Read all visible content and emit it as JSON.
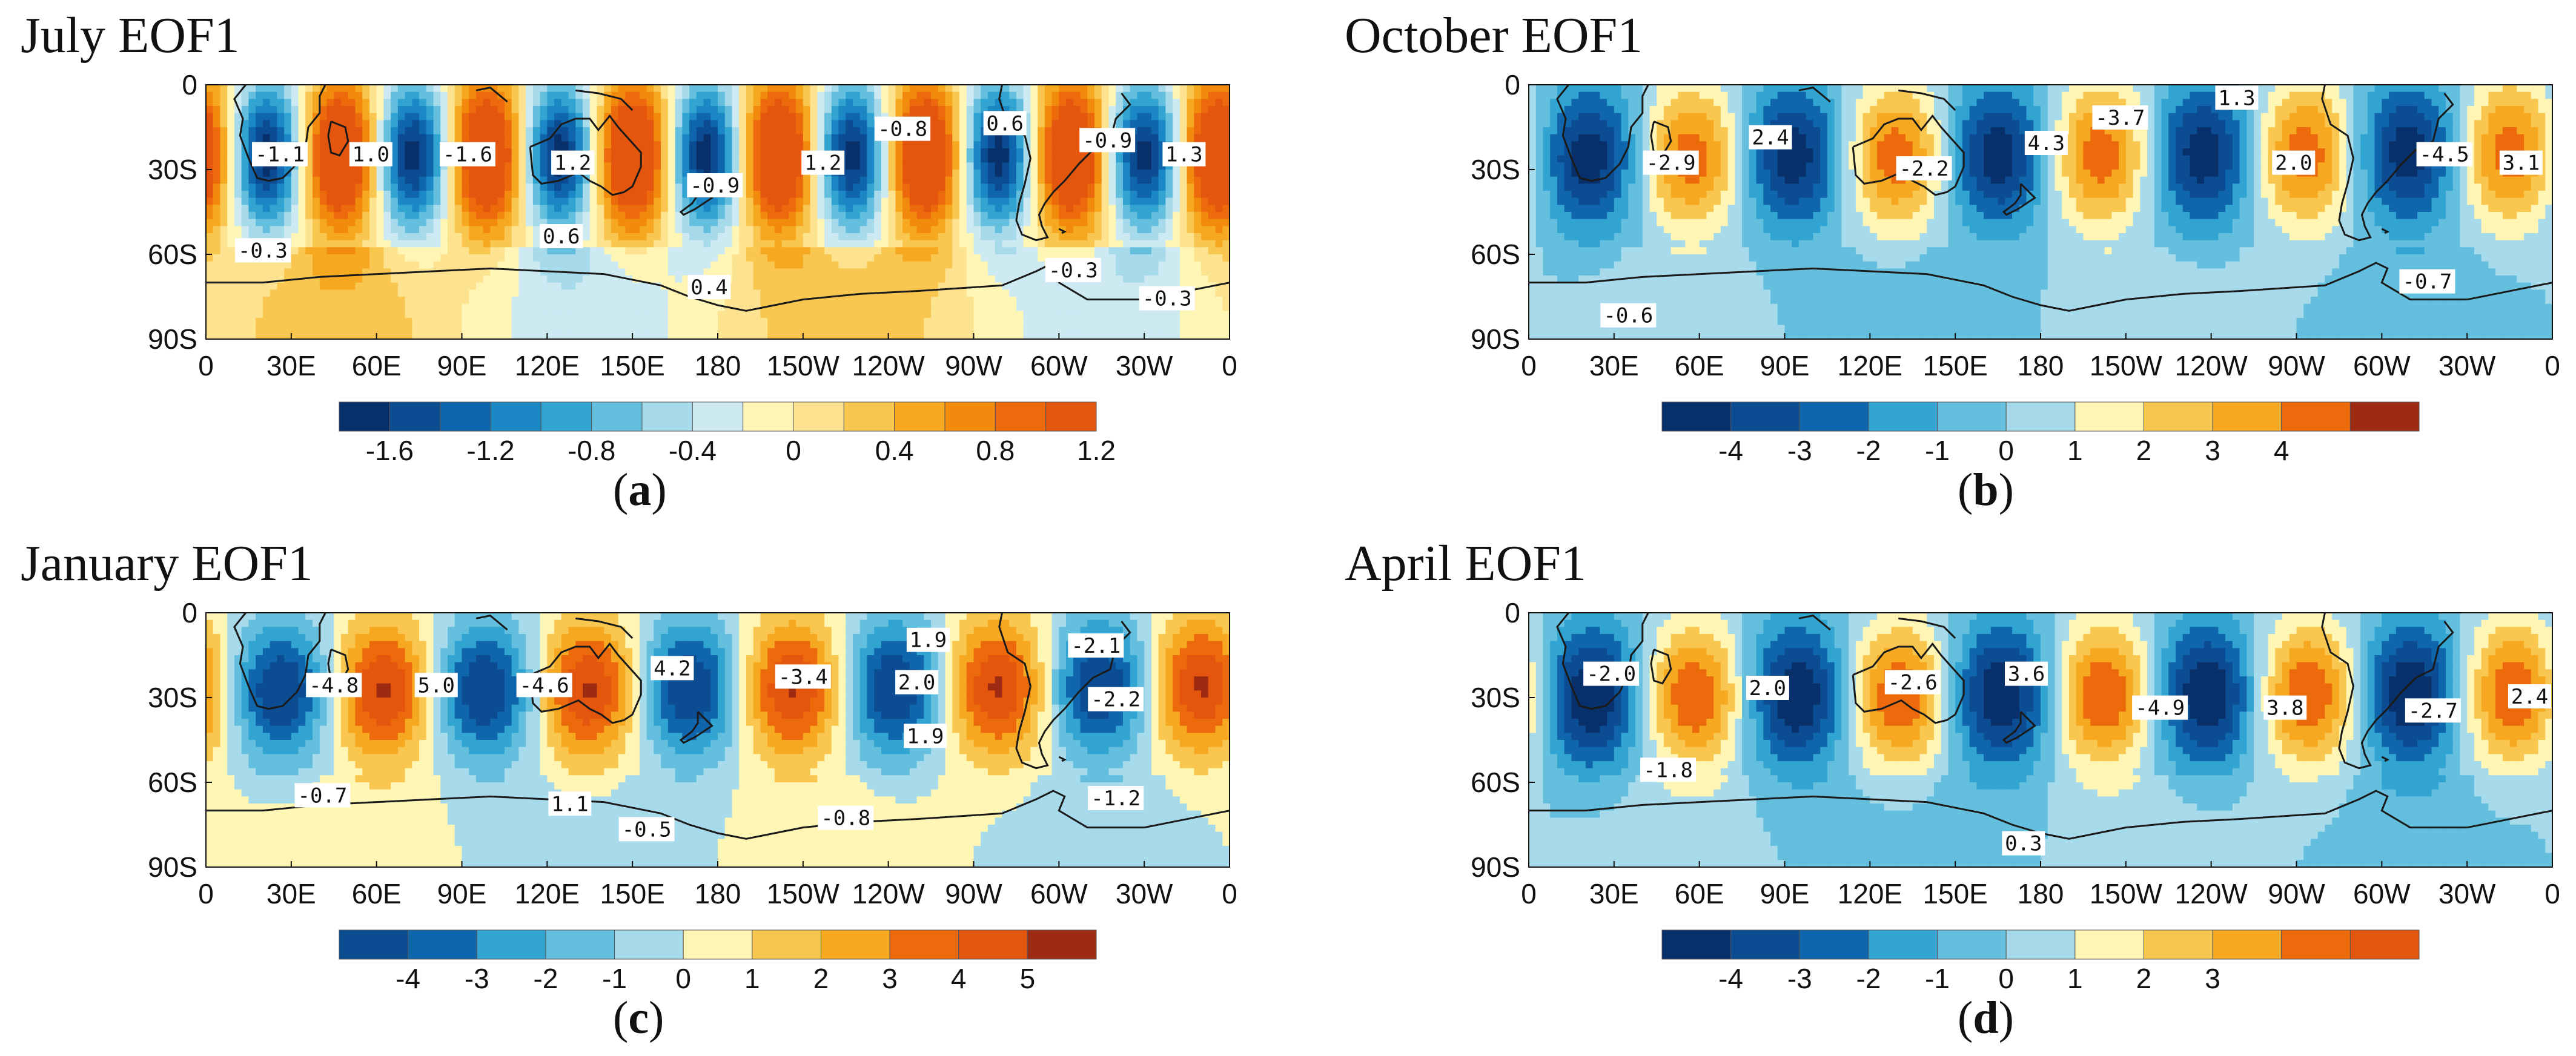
{
  "panels": [
    {
      "id": "a",
      "title": "July EOF1",
      "letter": "a",
      "lat_labels": [
        "0",
        "30S",
        "60S",
        "90S"
      ],
      "lon_labels": [
        "0",
        "30E",
        "60E",
        "90E",
        "120E",
        "150E",
        "180",
        "150W",
        "120W",
        "90W",
        "60W",
        "30W",
        "0"
      ],
      "colorbar": {
        "colors": [
          "#08306b",
          "#0c4c92",
          "#1066ad",
          "#1b87c4",
          "#31a4d2",
          "#63bfdd",
          "#a7daeb",
          "#cdeaf3",
          "#fff5b5",
          "#fde38f",
          "#f9c74f",
          "#f6a821",
          "#f28a0d",
          "#ec6a0c",
          "#e4550e"
        ],
        "tick_labels": [
          "-1.6",
          "-1.2",
          "-0.8",
          "-0.4",
          "0",
          "0.4",
          "0.8",
          "1.2"
        ],
        "tick_bounds": [
          1,
          3,
          5,
          7,
          9,
          11,
          13,
          15
        ]
      },
      "labels": [
        {
          "text": "-1.1",
          "lon": 26,
          "lat": -25
        },
        {
          "text": "1.0",
          "lon": 58,
          "lat": -25
        },
        {
          "text": "-1.6",
          "lon": 92,
          "lat": -25
        },
        {
          "text": "1.2",
          "lon": 129,
          "lat": -28
        },
        {
          "text": "-0.9",
          "lon": 179,
          "lat": -36
        },
        {
          "text": "1.2",
          "lon": 217,
          "lat": -28
        },
        {
          "text": "-0.8",
          "lon": 245,
          "lat": -16
        },
        {
          "text": "0.6",
          "lon": 281,
          "lat": -14
        },
        {
          "text": "-0.9",
          "lon": 317,
          "lat": -20
        },
        {
          "text": "1.3",
          "lon": 344,
          "lat": -25
        },
        {
          "text": "-0.3",
          "lon": 20,
          "lat": -59
        },
        {
          "text": "0.6",
          "lon": 125,
          "lat": -54
        },
        {
          "text": "0.4",
          "lon": 177,
          "lat": -72
        },
        {
          "text": "-0.3",
          "lon": 305,
          "lat": -66
        },
        {
          "text": "-0.3",
          "lon": 338,
          "lat": -76
        }
      ]
    },
    {
      "id": "b",
      "title": "October EOF1",
      "letter": "b",
      "lat_labels": [
        "0",
        "30S",
        "60S",
        "90S"
      ],
      "lon_labels": [
        "0",
        "30E",
        "60E",
        "90E",
        "120E",
        "150E",
        "180",
        "150W",
        "120W",
        "90W",
        "60W",
        "30W",
        "0"
      ],
      "colorbar": {
        "colors": [
          "#08306b",
          "#0c4c92",
          "#1066ad",
          "#31a4d2",
          "#63bfdd",
          "#a7daeb",
          "#fff5b5",
          "#f9c74f",
          "#f6a821",
          "#ec6a0c",
          "#9e2a12"
        ],
        "tick_labels": [
          "-4",
          "-3",
          "-2",
          "-1",
          "0",
          "1",
          "2",
          "3",
          "4"
        ],
        "tick_bounds": [
          1,
          2,
          3,
          4,
          5,
          6,
          7,
          8,
          9
        ]
      },
      "labels": [
        {
          "text": "-2.9",
          "lon": 50,
          "lat": -28
        },
        {
          "text": "2.4",
          "lon": 85,
          "lat": -19
        },
        {
          "text": "-2.2",
          "lon": 139,
          "lat": -30
        },
        {
          "text": "4.3",
          "lon": 182,
          "lat": -21
        },
        {
          "text": "-3.7",
          "lon": 208,
          "lat": -12
        },
        {
          "text": "1.3",
          "lon": 249,
          "lat": -5
        },
        {
          "text": "2.0",
          "lon": 269,
          "lat": -28
        },
        {
          "text": "-4.5",
          "lon": 322,
          "lat": -25
        },
        {
          "text": "3.1",
          "lon": 349,
          "lat": -28
        },
        {
          "text": "-0.6",
          "lon": 35,
          "lat": -82
        },
        {
          "text": "-0.7",
          "lon": 316,
          "lat": -70
        }
      ]
    },
    {
      "id": "c",
      "title": "January EOF1",
      "letter": "c",
      "lat_labels": [
        "0",
        "30S",
        "60S",
        "90S"
      ],
      "lon_labels": [
        "0",
        "30E",
        "60E",
        "90E",
        "120E",
        "150E",
        "180",
        "150W",
        "120W",
        "90W",
        "60W",
        "30W",
        "0"
      ],
      "colorbar": {
        "colors": [
          "#0c4c92",
          "#1066ad",
          "#31a4d2",
          "#63bfdd",
          "#a7daeb",
          "#fff5b5",
          "#f9c74f",
          "#f6a821",
          "#ec6a0c",
          "#e4550e",
          "#9e2a12"
        ],
        "tick_labels": [
          "-4",
          "-3",
          "-2",
          "-1",
          "0",
          "1",
          "2",
          "3",
          "4",
          "5"
        ],
        "tick_bounds": [
          1,
          2,
          3,
          4,
          5,
          6,
          7,
          8,
          9,
          10
        ]
      },
      "labels": [
        {
          "text": "-4.8",
          "lon": 45,
          "lat": -26
        },
        {
          "text": "5.0",
          "lon": 81,
          "lat": -26
        },
        {
          "text": "-4.6",
          "lon": 119,
          "lat": -26
        },
        {
          "text": "4.2",
          "lon": 164,
          "lat": -20
        },
        {
          "text": "-3.4",
          "lon": 210,
          "lat": -23
        },
        {
          "text": "1.9",
          "lon": 254,
          "lat": -10
        },
        {
          "text": "2.0",
          "lon": 250,
          "lat": -25
        },
        {
          "text": "1.9",
          "lon": 253,
          "lat": -44
        },
        {
          "text": "-2.1",
          "lon": 313,
          "lat": -12
        },
        {
          "text": "-2.2",
          "lon": 320,
          "lat": -31
        },
        {
          "text": "-0.7",
          "lon": 41,
          "lat": -65
        },
        {
          "text": "1.1",
          "lon": 128,
          "lat": -68
        },
        {
          "text": "-0.5",
          "lon": 155,
          "lat": -77
        },
        {
          "text": "-0.8",
          "lon": 225,
          "lat": -73
        },
        {
          "text": "-1.2",
          "lon": 320,
          "lat": -66
        }
      ]
    },
    {
      "id": "d",
      "title": "April EOF1",
      "letter": "d",
      "lat_labels": [
        "0",
        "30S",
        "60S",
        "90S"
      ],
      "lon_labels": [
        "0",
        "30E",
        "60E",
        "90E",
        "120E",
        "150E",
        "180",
        "150W",
        "120W",
        "90W",
        "60W",
        "30W",
        "0"
      ],
      "colorbar": {
        "colors": [
          "#08306b",
          "#0c4c92",
          "#1066ad",
          "#31a4d2",
          "#63bfdd",
          "#a7daeb",
          "#fff5b5",
          "#f9c74f",
          "#f6a821",
          "#ec6a0c",
          "#e4550e"
        ],
        "tick_labels": [
          "-4",
          "-3",
          "-2",
          "-1",
          "0",
          "1",
          "2",
          "3"
        ],
        "tick_bounds": [
          1,
          2,
          3,
          4,
          5,
          6,
          7,
          8
        ]
      },
      "labels": [
        {
          "text": "-2.0",
          "lon": 29,
          "lat": -22
        },
        {
          "text": "2.0",
          "lon": 84,
          "lat": -27
        },
        {
          "text": "-2.6",
          "lon": 135,
          "lat": -25
        },
        {
          "text": "3.6",
          "lon": 175,
          "lat": -22
        },
        {
          "text": "-4.9",
          "lon": 222,
          "lat": -34
        },
        {
          "text": "3.8",
          "lon": 266,
          "lat": -34
        },
        {
          "text": "-2.7",
          "lon": 318,
          "lat": -35
        },
        {
          "text": "2.4",
          "lon": 352,
          "lat": -30
        },
        {
          "text": "-1.8",
          "lon": 49,
          "lat": -56
        },
        {
          "text": "0.3",
          "lon": 174,
          "lat": -82
        }
      ]
    }
  ],
  "colors": {
    "coastline": "#1a1a1a",
    "label_bg": "#ffffff"
  }
}
